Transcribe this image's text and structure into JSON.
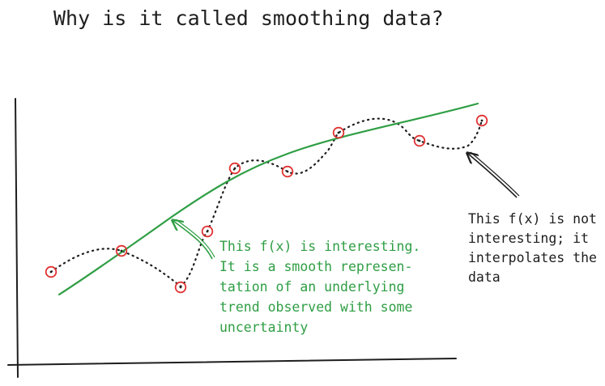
{
  "title": "Why is it called smoothing data?",
  "annotations": {
    "smooth": {
      "lines": [
        "This f(x) is interesting.",
        "It is a smooth represen-",
        "tation of an underlying",
        "trend observed with some",
        "uncertainty"
      ],
      "color": "#2f9e44"
    },
    "interpolate": {
      "lines": [
        "This f(x) is not",
        "interesting; it",
        "interpolates the",
        "data"
      ],
      "color": "#1e1e1e"
    }
  },
  "colors": {
    "smooth_curve": "#2f9e44",
    "data_points": "#e03131",
    "interpolating_curve": "#1e1e1e",
    "axes": "#1e1e1e"
  }
}
